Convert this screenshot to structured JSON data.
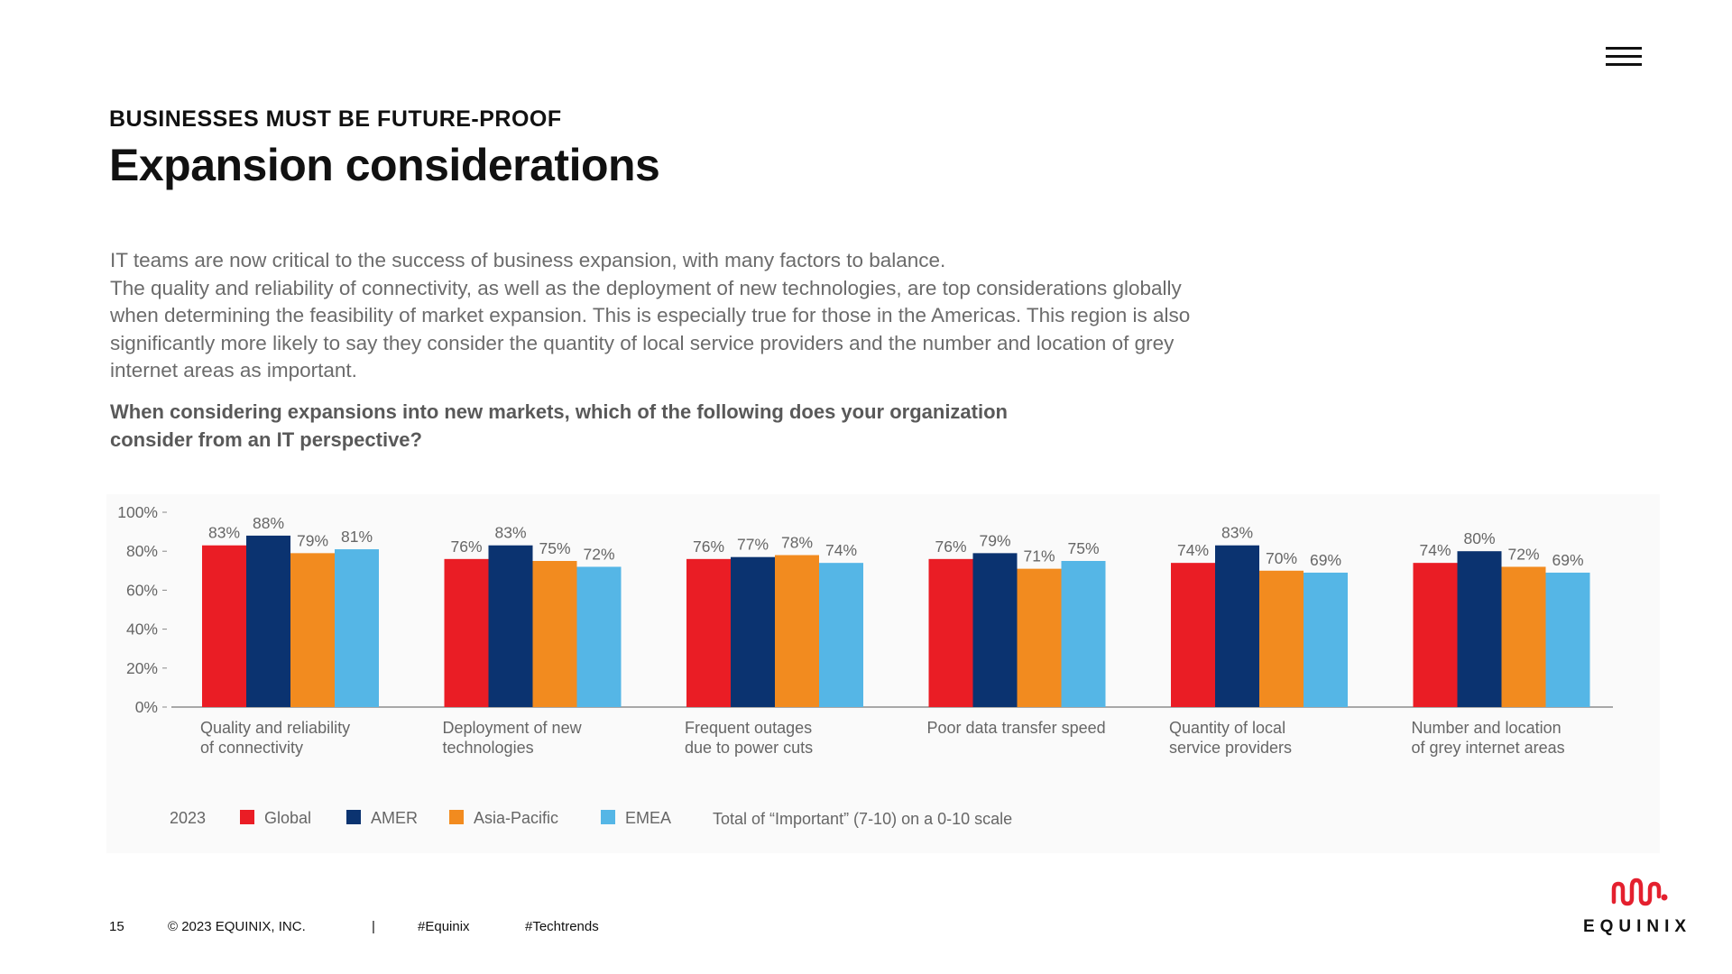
{
  "header": {
    "eyebrow": "BUSINESSES MUST BE FUTURE-PROOF",
    "title": "Expansion considerations",
    "menu_icon": "hamburger-menu-icon"
  },
  "body": {
    "paragraph_1": "IT teams are now critical to the success of business expansion, with many factors to balance.",
    "paragraph_2": "The quality and reliability of connectivity, as well as the deployment of new technologies, are top considerations globally when determining the feasibility of market expansion. This is especially true for those in the Americas. This region is also significantly more likely to say they consider the quantity of local service providers and the number and location of grey internet areas as important.",
    "question": "When considering expansions into new markets, which of the following does your organization consider from an IT perspective?"
  },
  "chart_data": {
    "type": "bar",
    "categories": [
      [
        "Quality and reliability",
        "of connectivity"
      ],
      [
        "Deployment of new",
        "technologies"
      ],
      [
        "Frequent outages",
        "due to power cuts"
      ],
      [
        "Poor data transfer speed"
      ],
      [
        "Quantity of local",
        "service providers"
      ],
      [
        "Number and location",
        "of grey internet areas"
      ]
    ],
    "series": [
      {
        "name": "Global",
        "color": "#ea1d25",
        "values": [
          83,
          76,
          76,
          76,
          74,
          74
        ]
      },
      {
        "name": "AMER",
        "color": "#0b3370",
        "values": [
          88,
          83,
          77,
          79,
          83,
          80
        ]
      },
      {
        "name": "Asia-Pacific",
        "color": "#f28b1f",
        "values": [
          79,
          75,
          78,
          71,
          70,
          72
        ]
      },
      {
        "name": "EMEA",
        "color": "#55b6e6",
        "values": [
          81,
          72,
          74,
          75,
          69,
          69
        ]
      }
    ],
    "y_ticks": [
      "100%",
      "80%",
      "60%",
      "40%",
      "20%",
      "0%"
    ],
    "y_tick_values": [
      100,
      80,
      60,
      40,
      20,
      0
    ],
    "ylim": [
      0,
      100
    ],
    "value_suffix": "%",
    "legend_year": "2023",
    "legend_note": "Total of “Important” (7-10) on a 0-10 scale",
    "title": "",
    "xlabel": "",
    "ylabel": ""
  },
  "footer": {
    "page_number": "15",
    "copyright": "© 2023 EQUINIX, INC.",
    "separator": "|",
    "hashtag_1": "#Equinix",
    "hashtag_2": "#Techtrends"
  },
  "logo": {
    "text": "EQUINIX",
    "icon": "equinix-logo-icon",
    "color": "#e4202e"
  }
}
